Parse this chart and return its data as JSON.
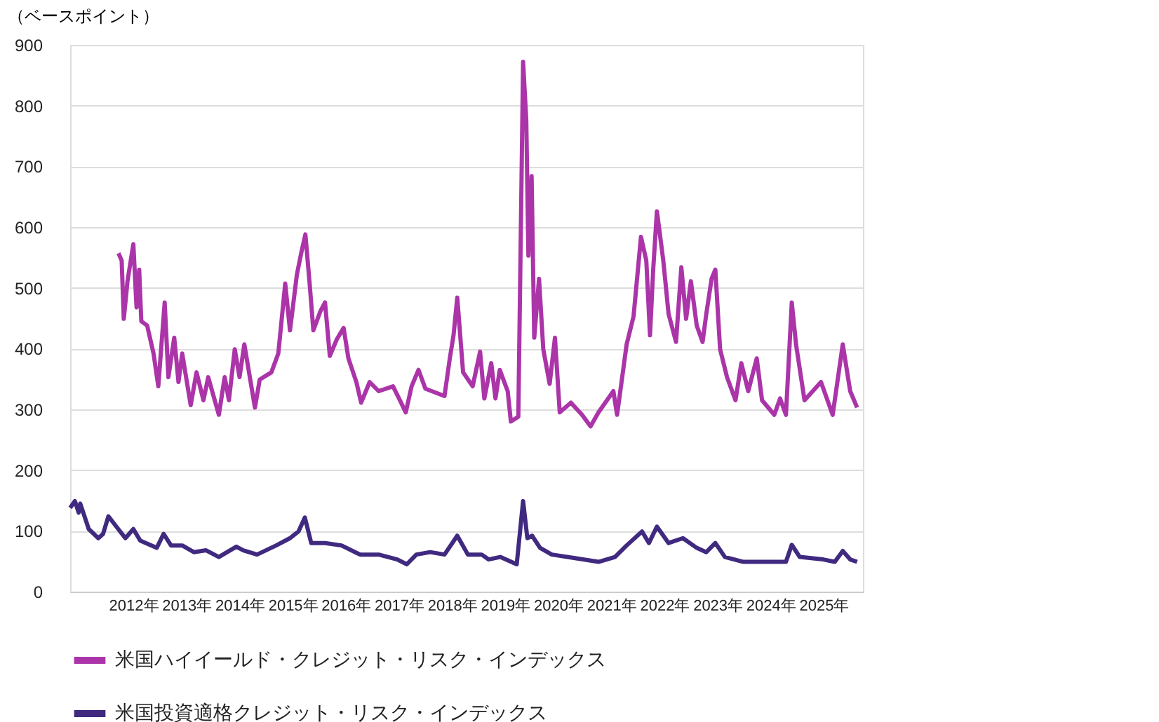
{
  "chart_data": {
    "type": "line",
    "ylabel": "（ベースポイント）",
    "xlim": [
      2010.81,
      2025.74
    ],
    "ylim": [
      0,
      900
    ],
    "yticks": [
      0,
      100,
      200,
      300,
      400,
      500,
      600,
      700,
      800,
      900
    ],
    "xticks": [
      {
        "value": 2012,
        "label": "2012年"
      },
      {
        "value": 2013,
        "label": "2013年"
      },
      {
        "value": 2014,
        "label": "2014年"
      },
      {
        "value": 2015,
        "label": "2015年"
      },
      {
        "value": 2016,
        "label": "2016年"
      },
      {
        "value": 2017,
        "label": "2017年"
      },
      {
        "value": 2018,
        "label": "2018年"
      },
      {
        "value": 2019,
        "label": "2019年"
      },
      {
        "value": 2020,
        "label": "2020年"
      },
      {
        "value": 2021,
        "label": "2021年"
      },
      {
        "value": 2022,
        "label": "2022年"
      },
      {
        "value": 2023,
        "label": "2023年"
      },
      {
        "value": 2024,
        "label": "2024年"
      },
      {
        "value": 2025,
        "label": "2025年"
      }
    ],
    "grid": "y",
    "legend": "bottom",
    "marker": "none",
    "line_style": "solid",
    "series": [
      {
        "name": "米国ハイイールド・クレジット・リスク・インデックス",
        "color": "#ab35a8",
        "x": [
          2011.72,
          2011.78,
          2011.82,
          2011.89,
          2012.0,
          2012.06,
          2012.11,
          2012.15,
          2012.26,
          2012.38,
          2012.47,
          2012.59,
          2012.66,
          2012.77,
          2012.85,
          2012.92,
          2013.08,
          2013.19,
          2013.32,
          2013.41,
          2013.61,
          2013.72,
          2013.8,
          2013.91,
          2014.0,
          2014.09,
          2014.29,
          2014.38,
          2014.6,
          2014.73,
          2014.86,
          2014.95,
          2015.08,
          2015.17,
          2015.24,
          2015.32,
          2015.39,
          2015.52,
          2015.61,
          2015.7,
          2015.83,
          2015.96,
          2016.05,
          2016.2,
          2016.29,
          2016.45,
          2016.62,
          2016.89,
          2017.02,
          2017.13,
          2017.24,
          2017.37,
          2017.5,
          2017.86,
          2017.96,
          2018.03,
          2018.1,
          2018.21,
          2018.39,
          2018.53,
          2018.61,
          2018.74,
          2018.82,
          2018.9,
          2019.05,
          2019.11,
          2019.25,
          2019.29,
          2019.34,
          2019.4,
          2019.44,
          2019.5,
          2019.55,
          2019.64,
          2019.72,
          2019.84,
          2019.94,
          2020.03,
          2020.24,
          2020.45,
          2020.61,
          2020.76,
          2021.04,
          2021.11,
          2021.29,
          2021.42,
          2021.56,
          2021.66,
          2021.73,
          2021.79,
          2021.86,
          2021.98,
          2022.08,
          2022.22,
          2022.32,
          2022.41,
          2022.5,
          2022.61,
          2022.72,
          2022.79,
          2022.89,
          2022.96,
          2023.05,
          2023.18,
          2023.34,
          2023.45,
          2023.58,
          2023.74,
          2023.84,
          2024.07,
          2024.18,
          2024.29,
          2024.4,
          2024.48,
          2024.64,
          2024.95,
          2025.17,
          2025.36,
          2025.5,
          2025.63
        ],
        "values": [
          557,
          545,
          449,
          511,
          572,
          468,
          530,
          445,
          438,
          392,
          338,
          476,
          353,
          418,
          345,
          392,
          307,
          361,
          315,
          353,
          291,
          353,
          315,
          399,
          353,
          407,
          303,
          349,
          361,
          392,
          507,
          430,
          522,
          561,
          588,
          507,
          430,
          461,
          476,
          388,
          415,
          434,
          384,
          345,
          311,
          345,
          330,
          338,
          315,
          295,
          338,
          365,
          334,
          322,
          384,
          422,
          484,
          361,
          338,
          395,
          318,
          376,
          318,
          365,
          330,
          280,
          288,
          545,
          872,
          776,
          553,
          684,
          418,
          515,
          399,
          342,
          418,
          295,
          311,
          291,
          272,
          295,
          330,
          291,
          407,
          453,
          584,
          545,
          422,
          530,
          626,
          545,
          457,
          411,
          534,
          449,
          511,
          438,
          411,
          457,
          515,
          530,
          399,
          353,
          315,
          376,
          330,
          384,
          315,
          291,
          318,
          291,
          476,
          407,
          315,
          345,
          291,
          407,
          330,
          303
        ]
      },
      {
        "name": "米国投資適格クレジット・リスク・インデックス",
        "color": "#402a80",
        "x": [
          2010.81,
          2010.9,
          2010.97,
          2011.0,
          2011.16,
          2011.34,
          2011.43,
          2011.53,
          2011.68,
          2011.85,
          2012.0,
          2012.13,
          2012.44,
          2012.57,
          2012.71,
          2012.92,
          2013.14,
          2013.37,
          2013.61,
          2013.94,
          2014.07,
          2014.33,
          2014.69,
          2014.95,
          2015.11,
          2015.23,
          2015.35,
          2015.61,
          2015.92,
          2016.27,
          2016.62,
          2016.97,
          2017.15,
          2017.33,
          2017.59,
          2017.86,
          2018.1,
          2018.3,
          2018.56,
          2018.69,
          2018.91,
          2019.22,
          2019.34,
          2019.42,
          2019.51,
          2019.66,
          2019.88,
          2020.32,
          2020.76,
          2021.07,
          2021.29,
          2021.58,
          2021.71,
          2021.86,
          2022.08,
          2022.35,
          2022.61,
          2022.79,
          2022.96,
          2023.14,
          2023.49,
          2023.84,
          2024.29,
          2024.4,
          2024.55,
          2024.99,
          2025.21,
          2025.36,
          2025.5,
          2025.63
        ],
        "values": [
          138,
          149,
          130,
          145,
          103,
          88,
          95,
          124,
          107,
          88,
          103,
          84,
          72,
          95,
          76,
          76,
          65,
          68,
          57,
          74,
          68,
          61,
          76,
          88,
          99,
          122,
          80,
          80,
          76,
          61,
          61,
          53,
          45,
          61,
          65,
          61,
          92,
          61,
          61,
          53,
          57,
          45,
          149,
          88,
          92,
          72,
          61,
          55,
          49,
          57,
          76,
          99,
          80,
          107,
          80,
          88,
          72,
          65,
          80,
          57,
          49,
          49,
          49,
          77,
          57,
          53,
          49,
          67,
          53,
          49
        ]
      }
    ]
  }
}
